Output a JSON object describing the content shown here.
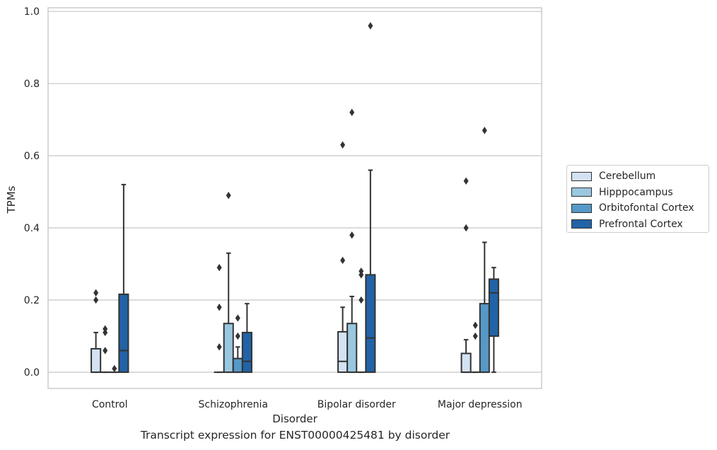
{
  "caption": "Transcript expression for ENST00000425481 by disorder",
  "colors": {
    "Cerebellum": "#d3e3f3",
    "Hipppocampus": "#9ac8e0",
    "Orbitofontal Cortex": "#5599c8",
    "Prefrontal Cortex": "#2163a6"
  },
  "chart_data": {
    "type": "box",
    "xlabel": "Disorder",
    "ylabel": "TPMs",
    "ylim": [
      -0.045,
      1.01
    ],
    "yticks": [
      "0.0",
      "0.2",
      "0.4",
      "0.6",
      "0.8",
      "1.0"
    ],
    "grid": true,
    "legend_position": "right",
    "categories": [
      "Control",
      "Schizophrenia",
      "Bipolar disorder",
      "Major depression"
    ],
    "series": [
      {
        "name": "Cerebellum",
        "boxes": [
          {
            "q1": 0.0,
            "median": 0.0,
            "q3": 0.065,
            "whisker_low": 0.0,
            "whisker_high": 0.11,
            "outliers": [
              0.2,
              0.22
            ]
          },
          {
            "q1": 0.0,
            "median": 0.0,
            "q3": 0.0,
            "whisker_low": 0.0,
            "whisker_high": 0.0,
            "outliers": [
              0.07,
              0.18,
              0.29
            ]
          },
          {
            "q1": 0.0,
            "median": 0.03,
            "q3": 0.112,
            "whisker_low": 0.0,
            "whisker_high": 0.18,
            "outliers": [
              0.31,
              0.63
            ]
          },
          {
            "q1": 0.0,
            "median": 0.0,
            "q3": 0.052,
            "whisker_low": 0.0,
            "whisker_high": 0.09,
            "outliers": [
              0.4,
              0.53
            ]
          }
        ]
      },
      {
        "name": "Hipppocampus",
        "boxes": [
          {
            "q1": 0.0,
            "median": 0.0,
            "q3": 0.0,
            "whisker_low": 0.0,
            "whisker_high": 0.0,
            "outliers": [
              0.06,
              0.11,
              0.12
            ]
          },
          {
            "q1": 0.0,
            "median": 0.0,
            "q3": 0.135,
            "whisker_low": 0.0,
            "whisker_high": 0.33,
            "outliers": [
              0.49
            ]
          },
          {
            "q1": 0.0,
            "median": 0.0,
            "q3": 0.135,
            "whisker_low": 0.0,
            "whisker_high": 0.21,
            "outliers": [
              0.38,
              0.72
            ]
          },
          {
            "q1": 0.0,
            "median": 0.0,
            "q3": 0.0,
            "whisker_low": 0.0,
            "whisker_high": 0.0,
            "outliers": [
              0.1,
              0.13
            ]
          }
        ]
      },
      {
        "name": "Orbitofontal Cortex",
        "boxes": [
          {
            "q1": 0.0,
            "median": 0.0,
            "q3": 0.0,
            "whisker_low": 0.0,
            "whisker_high": 0.0,
            "outliers": [
              0.01
            ]
          },
          {
            "q1": 0.0,
            "median": 0.0,
            "q3": 0.038,
            "whisker_low": 0.0,
            "whisker_high": 0.07,
            "outliers": [
              0.1,
              0.15
            ]
          },
          {
            "q1": 0.0,
            "median": 0.0,
            "q3": 0.0,
            "whisker_low": 0.0,
            "whisker_high": 0.0,
            "outliers": [
              0.2,
              0.27,
              0.28
            ]
          },
          {
            "q1": 0.0,
            "median": 0.0,
            "q3": 0.19,
            "whisker_low": 0.0,
            "whisker_high": 0.36,
            "outliers": [
              0.67
            ]
          }
        ]
      },
      {
        "name": "Prefrontal Cortex",
        "boxes": [
          {
            "q1": 0.0,
            "median": 0.06,
            "q3": 0.216,
            "whisker_low": 0.0,
            "whisker_high": 0.52,
            "outliers": []
          },
          {
            "q1": 0.0,
            "median": 0.03,
            "q3": 0.11,
            "whisker_low": 0.0,
            "whisker_high": 0.19,
            "outliers": []
          },
          {
            "q1": 0.0,
            "median": 0.095,
            "q3": 0.27,
            "whisker_low": 0.0,
            "whisker_high": 0.56,
            "outliers": [
              0.96
            ]
          },
          {
            "q1": 0.1,
            "median": 0.22,
            "q3": 0.258,
            "whisker_low": 0.0,
            "whisker_high": 0.29,
            "outliers": []
          }
        ]
      }
    ]
  }
}
